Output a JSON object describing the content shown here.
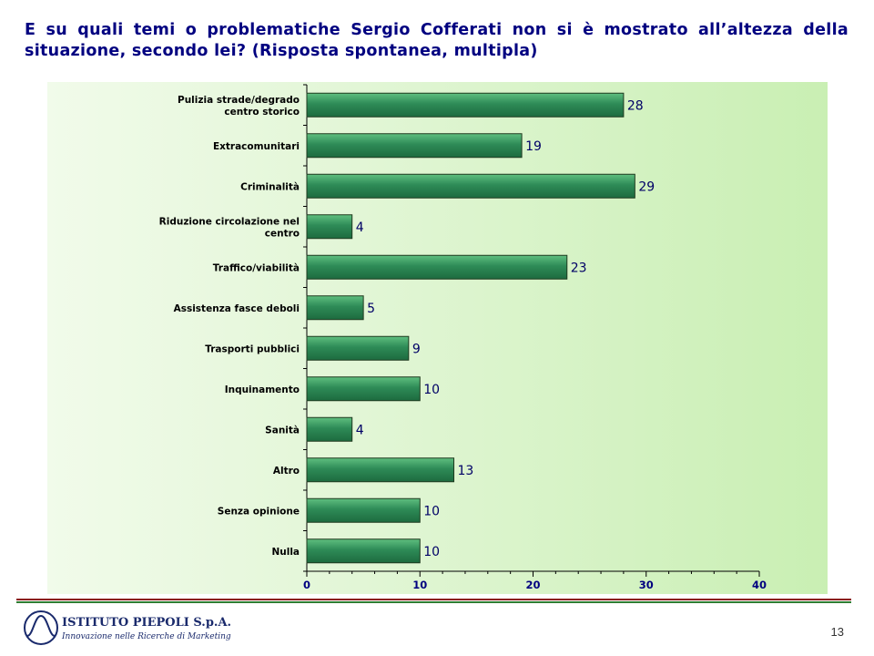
{
  "slide": {
    "title": "E su quali temi o problematiche Sergio Cofferati non si è mostrato all’altezza della situazione, secondo lei? (Risposta spontanea, multipla)",
    "page_number": "13"
  },
  "footer": {
    "logo_name": "ISTITUTO PIEPOLI S.p.A.",
    "logo_tagline": "Innovazione nelle Ricerche di Marketing"
  },
  "colors": {
    "title": "#000080",
    "bar_fill": "#2e8b57",
    "bar_border": "#1f3a1f",
    "value_label": "#000066",
    "axis_tick_label": "#000080",
    "panel_bg": "#dff5d0"
  },
  "chart_data": {
    "type": "bar",
    "orientation": "horizontal",
    "categories": [
      "Pulizia strade/degrado centro storico",
      "Extracomunitari",
      "Criminalità",
      "Riduzione circolazione nel centro",
      "Traffico/viabilità",
      "Assistenza fasce deboli",
      "Trasporti pubblici",
      "Inquinamento",
      "Sanità",
      "Altro",
      "Senza opinione",
      "Nulla"
    ],
    "category_lines": [
      [
        "Pulizia strade/degrado",
        "centro storico"
      ],
      [
        "Extracomunitari"
      ],
      [
        "Criminalità"
      ],
      [
        "Riduzione circolazione nel",
        "centro"
      ],
      [
        "Traffico/viabilità"
      ],
      [
        "Assistenza fasce deboli"
      ],
      [
        "Trasporti pubblici"
      ],
      [
        "Inquinamento"
      ],
      [
        "Sanità"
      ],
      [
        "Altro"
      ],
      [
        "Senza opinione"
      ],
      [
        "Nulla"
      ]
    ],
    "values": [
      28,
      19,
      29,
      4,
      23,
      5,
      9,
      10,
      4,
      13,
      10,
      10
    ],
    "xlim": [
      0,
      40
    ],
    "x_ticks": [
      0,
      10,
      20,
      30,
      40
    ],
    "grid": false,
    "legend": "none"
  }
}
